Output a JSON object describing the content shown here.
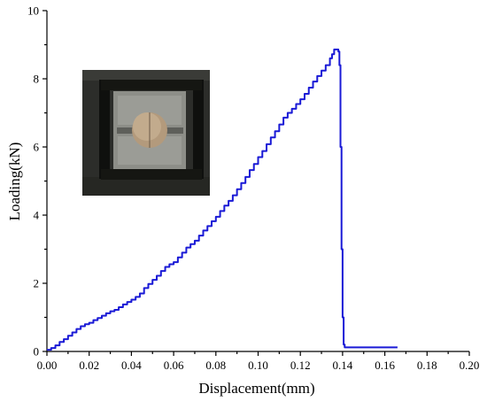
{
  "chart_data": {
    "type": "line",
    "xlabel": "Displacement(mm)",
    "ylabel": "Loading(kN)",
    "xlim": [
      0.0,
      0.2
    ],
    "ylim": [
      0,
      10
    ],
    "x_ticks": [
      "0.00",
      "0.02",
      "0.04",
      "0.06",
      "0.08",
      "0.10",
      "0.12",
      "0.14",
      "0.16",
      "0.18",
      "0.20"
    ],
    "y_ticks": [
      "0",
      "2",
      "4",
      "6",
      "8",
      "10"
    ],
    "grid": false,
    "inset": "photo of specimen in test fixture",
    "series": [
      {
        "color": "#1a1ad6",
        "x": [
          0.0,
          0.002,
          0.004,
          0.006,
          0.008,
          0.01,
          0.012,
          0.014,
          0.016,
          0.018,
          0.02,
          0.022,
          0.024,
          0.026,
          0.028,
          0.03,
          0.032,
          0.034,
          0.036,
          0.038,
          0.04,
          0.042,
          0.044,
          0.046,
          0.048,
          0.05,
          0.052,
          0.054,
          0.056,
          0.058,
          0.06,
          0.062,
          0.064,
          0.066,
          0.068,
          0.07,
          0.072,
          0.074,
          0.076,
          0.078,
          0.08,
          0.082,
          0.084,
          0.086,
          0.088,
          0.09,
          0.092,
          0.094,
          0.096,
          0.098,
          0.1,
          0.102,
          0.104,
          0.106,
          0.108,
          0.11,
          0.112,
          0.114,
          0.116,
          0.118,
          0.12,
          0.122,
          0.124,
          0.126,
          0.128,
          0.13,
          0.132,
          0.134,
          0.135,
          0.136,
          0.137,
          0.138,
          0.1385,
          0.139,
          0.1395,
          0.14,
          0.1405,
          0.141,
          0.145,
          0.15,
          0.155,
          0.16,
          0.166
        ],
        "y": [
          0.05,
          0.1,
          0.18,
          0.28,
          0.36,
          0.46,
          0.56,
          0.66,
          0.74,
          0.8,
          0.84,
          0.92,
          0.98,
          1.05,
          1.12,
          1.18,
          1.22,
          1.3,
          1.38,
          1.45,
          1.52,
          1.6,
          1.7,
          1.86,
          1.98,
          2.1,
          2.22,
          2.36,
          2.48,
          2.56,
          2.62,
          2.76,
          2.9,
          3.05,
          3.15,
          3.25,
          3.4,
          3.55,
          3.68,
          3.82,
          3.95,
          4.12,
          4.28,
          4.42,
          4.58,
          4.76,
          4.94,
          5.12,
          5.32,
          5.5,
          5.7,
          5.88,
          6.08,
          6.28,
          6.46,
          6.66,
          6.86,
          7.0,
          7.12,
          7.26,
          7.4,
          7.56,
          7.74,
          7.92,
          8.08,
          8.24,
          8.4,
          8.6,
          8.72,
          8.86,
          8.86,
          8.8,
          8.4,
          6.0,
          3.0,
          1.0,
          0.2,
          0.12,
          0.12,
          0.12,
          0.12,
          0.12,
          0.12
        ]
      }
    ]
  }
}
